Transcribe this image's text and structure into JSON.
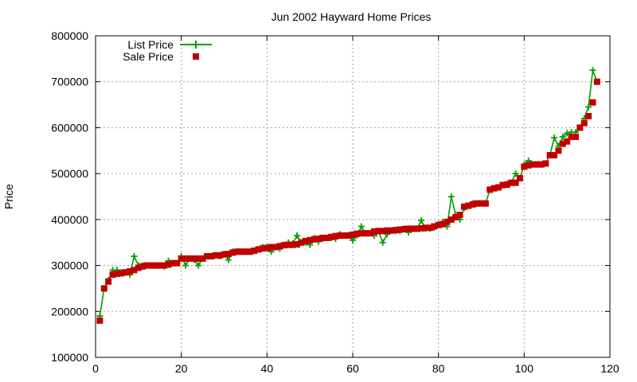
{
  "chart_data": {
    "type": "line",
    "title": "Jun 2002 Hayward Home Prices",
    "xlabel": "",
    "ylabel": "Price",
    "xlim": [
      0,
      120
    ],
    "ylim": [
      100000,
      800000
    ],
    "x_ticks": [
      0,
      20,
      40,
      60,
      80,
      100,
      120
    ],
    "y_ticks": [
      100000,
      200000,
      300000,
      400000,
      500000,
      600000,
      700000,
      800000
    ],
    "grid": true,
    "legend_position": "top-left",
    "series": [
      {
        "name": "List Price",
        "style": "line+cross",
        "color": "#00a000",
        "x": [
          1,
          2,
          3,
          4,
          5,
          6,
          7,
          8,
          9,
          10,
          11,
          12,
          13,
          14,
          15,
          16,
          17,
          18,
          19,
          20,
          21,
          22,
          23,
          24,
          25,
          26,
          27,
          28,
          29,
          30,
          31,
          32,
          33,
          34,
          35,
          36,
          37,
          38,
          39,
          40,
          41,
          42,
          43,
          44,
          45,
          46,
          47,
          48,
          49,
          50,
          51,
          52,
          53,
          54,
          55,
          56,
          57,
          58,
          59,
          60,
          61,
          62,
          63,
          64,
          65,
          66,
          67,
          68,
          69,
          70,
          71,
          72,
          73,
          74,
          75,
          76,
          77,
          78,
          79,
          80,
          81,
          82,
          83,
          84,
          85,
          86,
          87,
          88,
          89,
          90,
          91,
          92,
          93,
          94,
          95,
          96,
          97,
          98,
          99,
          100,
          101,
          102,
          103,
          104,
          105,
          106,
          107,
          108,
          109,
          110,
          111,
          112,
          113,
          114,
          115,
          116,
          117
        ],
        "values": [
          190000,
          250000,
          268000,
          290000,
          290000,
          285000,
          285000,
          280000,
          320000,
          300000,
          300000,
          300000,
          300000,
          300000,
          300000,
          298000,
          310000,
          305000,
          305000,
          320000,
          300000,
          315000,
          312000,
          300000,
          315000,
          320000,
          320000,
          322000,
          320000,
          325000,
          312000,
          330000,
          330000,
          330000,
          330000,
          330000,
          332000,
          335000,
          340000,
          340000,
          330000,
          340000,
          336000,
          345000,
          350000,
          348000,
          365000,
          350000,
          350000,
          345000,
          360000,
          352000,
          358000,
          360000,
          360000,
          358000,
          368000,
          365000,
          366000,
          355000,
          365000,
          385000,
          370000,
          370000,
          365000,
          375000,
          350000,
          368000,
          376000,
          375000,
          375000,
          380000,
          372000,
          380000,
          380000,
          398000,
          380000,
          380000,
          382000,
          390000,
          395000,
          385000,
          450000,
          410000,
          400000,
          425000,
          430000,
          435000,
          435000,
          435000,
          435000,
          465000,
          468000,
          470000,
          475000,
          478000,
          480000,
          500000,
          490000,
          520000,
          528000,
          520000,
          520000,
          520000,
          522000,
          540000,
          578000,
          560000,
          580000,
          588000,
          590000,
          590000,
          600000,
          620000,
          645000,
          725000,
          700000
        ]
      },
      {
        "name": "Sale Price",
        "style": "square",
        "color": "#c00000",
        "x": [
          1,
          2,
          3,
          4,
          5,
          6,
          7,
          8,
          9,
          10,
          11,
          12,
          13,
          14,
          15,
          16,
          17,
          18,
          19,
          20,
          21,
          22,
          23,
          24,
          25,
          26,
          27,
          28,
          29,
          30,
          31,
          32,
          33,
          34,
          35,
          36,
          37,
          38,
          39,
          40,
          41,
          42,
          43,
          44,
          45,
          46,
          47,
          48,
          49,
          50,
          51,
          52,
          53,
          54,
          55,
          56,
          57,
          58,
          59,
          60,
          61,
          62,
          63,
          64,
          65,
          66,
          67,
          68,
          69,
          70,
          71,
          72,
          73,
          74,
          75,
          76,
          77,
          78,
          79,
          80,
          81,
          82,
          83,
          84,
          85,
          86,
          87,
          88,
          89,
          90,
          91,
          92,
          93,
          94,
          95,
          96,
          97,
          98,
          99,
          100,
          101,
          102,
          103,
          104,
          105,
          106,
          107,
          108,
          109,
          110,
          111,
          112,
          113,
          114,
          115,
          116,
          117
        ],
        "values": [
          180000,
          250000,
          265000,
          280000,
          282000,
          283000,
          285000,
          287000,
          290000,
          295000,
          298000,
          300000,
          300000,
          300000,
          300000,
          300000,
          302000,
          305000,
          305000,
          315000,
          315000,
          315000,
          315000,
          315000,
          315000,
          320000,
          320000,
          322000,
          322000,
          324000,
          325000,
          328000,
          330000,
          330000,
          330000,
          330000,
          332000,
          335000,
          337000,
          338000,
          340000,
          340000,
          342000,
          344000,
          345000,
          345000,
          346000,
          350000,
          353000,
          355000,
          357000,
          358000,
          360000,
          360000,
          362000,
          364000,
          365000,
          365000,
          365000,
          367000,
          369000,
          370000,
          370000,
          370000,
          374000,
          375000,
          375000,
          376000,
          376000,
          377000,
          378000,
          379000,
          380000,
          380000,
          380000,
          381000,
          382000,
          382000,
          385000,
          388000,
          390000,
          395000,
          400000,
          405000,
          410000,
          428000,
          430000,
          433000,
          435000,
          435000,
          435000,
          465000,
          468000,
          470000,
          475000,
          476000,
          480000,
          480000,
          490000,
          515000,
          518000,
          520000,
          520000,
          520000,
          522000,
          540000,
          540000,
          550000,
          565000,
          570000,
          580000,
          580000,
          600000,
          610000,
          625000,
          655000,
          700000
        ]
      }
    ]
  }
}
